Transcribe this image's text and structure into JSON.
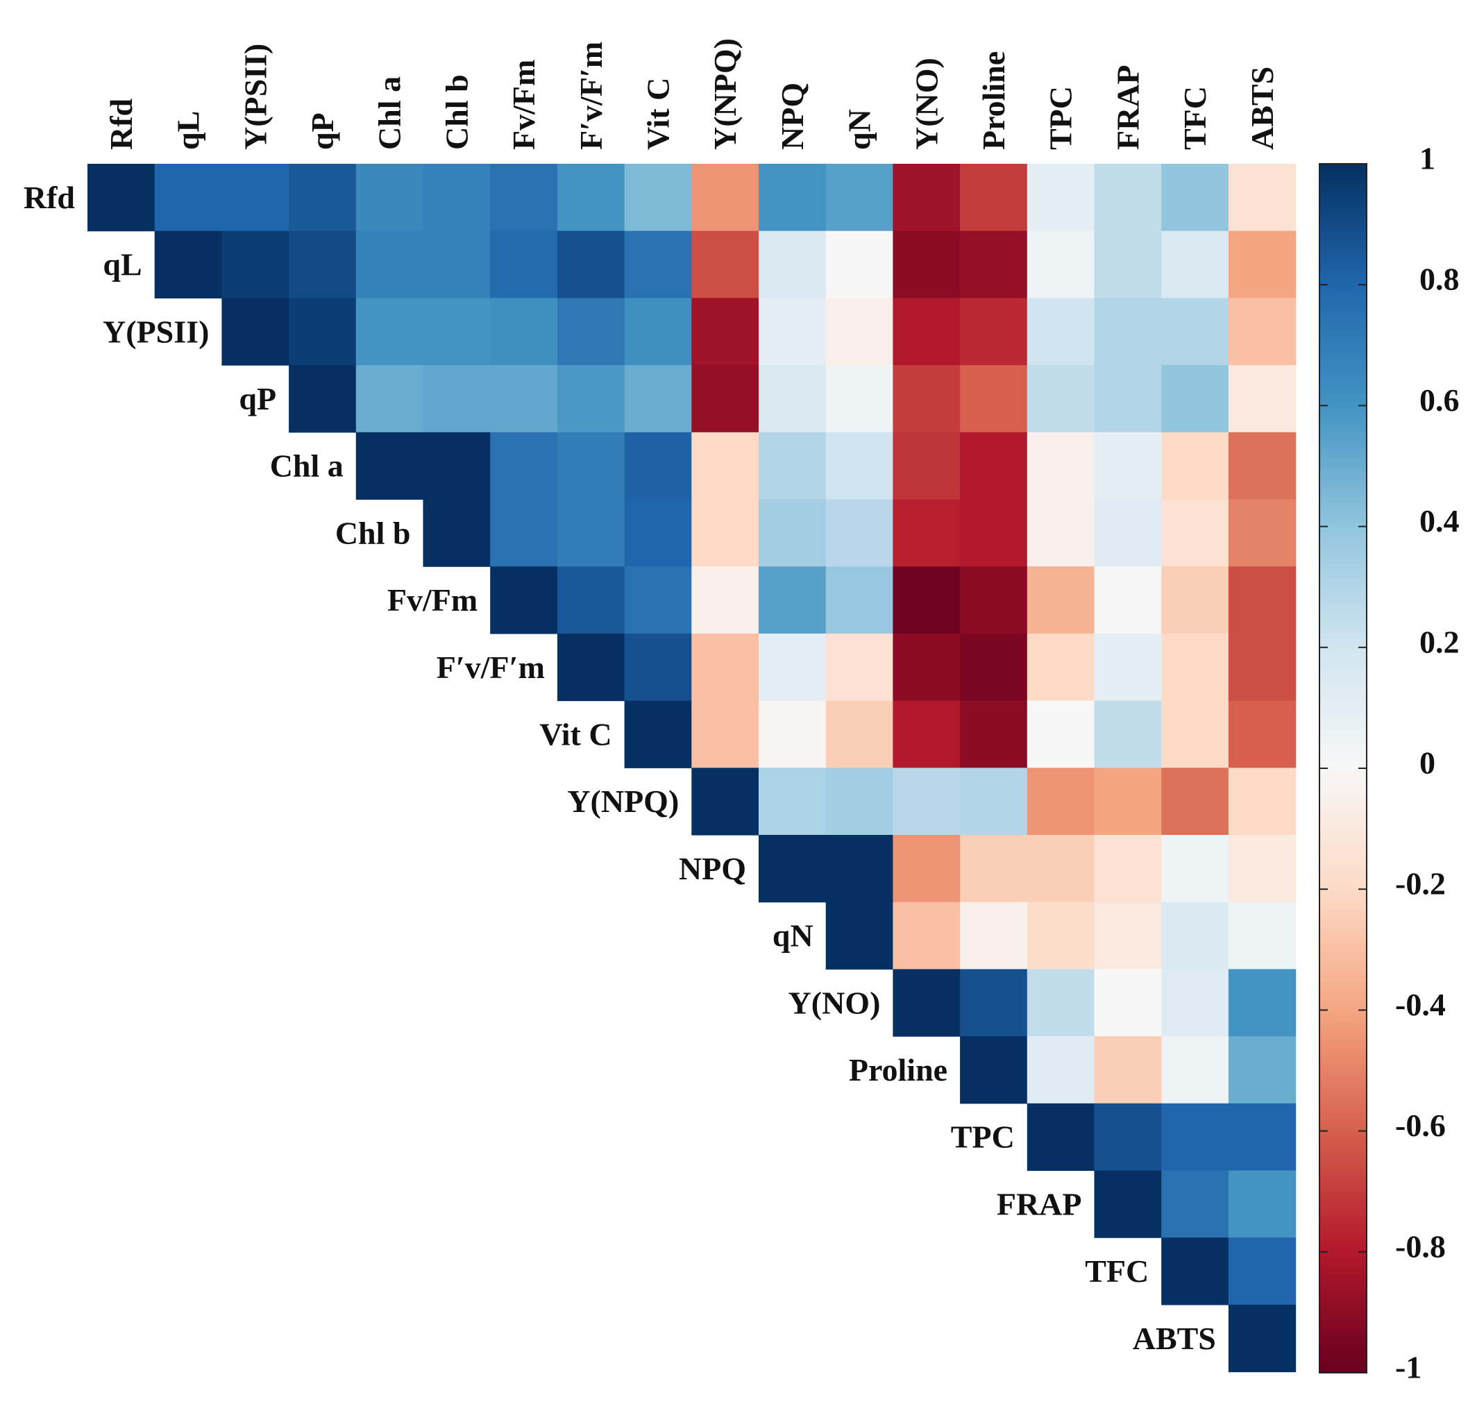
{
  "chart_data": {
    "type": "heatmap",
    "title": "",
    "variables": [
      "Rfd",
      "qL",
      "Y(PSII)",
      "qP",
      "Chl a",
      "Chl b",
      "Fv/Fm",
      "F′v/F′m",
      "Vit C",
      "Y(NPQ)",
      "NPQ",
      "qN",
      "Y(NO)",
      "Proline",
      "TPC",
      "FRAP",
      "TFC",
      "ABTS"
    ],
    "matrix": [
      [
        1.0,
        0.8,
        0.8,
        0.85,
        0.65,
        0.68,
        0.75,
        0.6,
        0.45,
        -0.45,
        0.6,
        0.55,
        -0.85,
        -0.7,
        0.1,
        0.25,
        0.4,
        -0.15
      ],
      [
        null,
        1.0,
        0.95,
        0.9,
        0.68,
        0.68,
        0.78,
        0.88,
        0.75,
        -0.65,
        0.15,
        0.0,
        -0.9,
        -0.88,
        0.05,
        0.25,
        0.15,
        -0.4
      ],
      [
        null,
        null,
        1.0,
        0.95,
        0.6,
        0.6,
        0.62,
        0.72,
        0.62,
        -0.85,
        0.1,
        -0.05,
        -0.8,
        -0.75,
        0.2,
        0.3,
        0.3,
        -0.3
      ],
      [
        null,
        null,
        null,
        1.0,
        0.5,
        0.52,
        0.52,
        0.58,
        0.5,
        -0.88,
        0.15,
        0.05,
        -0.7,
        -0.6,
        0.25,
        0.3,
        0.4,
        -0.1
      ],
      [
        null,
        null,
        null,
        null,
        1.0,
        1.0,
        0.75,
        0.7,
        0.82,
        -0.2,
        0.3,
        0.2,
        -0.72,
        -0.8,
        -0.05,
        0.1,
        -0.2,
        -0.55
      ],
      [
        null,
        null,
        null,
        null,
        null,
        1.0,
        0.75,
        0.7,
        0.8,
        -0.2,
        0.35,
        0.28,
        -0.78,
        -0.8,
        -0.05,
        0.12,
        -0.15,
        -0.5
      ],
      [
        null,
        null,
        null,
        null,
        null,
        null,
        1.0,
        0.85,
        0.75,
        -0.05,
        0.55,
        0.38,
        -0.98,
        -0.9,
        -0.35,
        0.0,
        -0.25,
        -0.65
      ],
      [
        null,
        null,
        null,
        null,
        null,
        null,
        null,
        1.0,
        0.88,
        -0.3,
        0.1,
        -0.15,
        -0.9,
        -0.95,
        -0.2,
        0.1,
        -0.2,
        -0.65
      ],
      [
        null,
        null,
        null,
        null,
        null,
        null,
        null,
        null,
        1.0,
        -0.3,
        -0.02,
        -0.25,
        -0.8,
        -0.9,
        0.0,
        0.25,
        -0.2,
        -0.6
      ],
      [
        null,
        null,
        null,
        null,
        null,
        null,
        null,
        null,
        null,
        1.0,
        0.32,
        0.35,
        0.28,
        0.3,
        -0.45,
        -0.4,
        -0.55,
        -0.2
      ],
      [
        null,
        null,
        null,
        null,
        null,
        null,
        null,
        null,
        null,
        null,
        1.0,
        1.0,
        -0.45,
        -0.25,
        -0.25,
        -0.15,
        0.05,
        -0.1
      ],
      [
        null,
        null,
        null,
        null,
        null,
        null,
        null,
        null,
        null,
        null,
        null,
        1.0,
        -0.3,
        -0.05,
        -0.18,
        -0.1,
        0.15,
        0.05
      ],
      [
        null,
        null,
        null,
        null,
        null,
        null,
        null,
        null,
        null,
        null,
        null,
        null,
        1.0,
        0.88,
        0.25,
        0.0,
        0.12,
        0.6
      ],
      [
        null,
        null,
        null,
        null,
        null,
        null,
        null,
        null,
        null,
        null,
        null,
        null,
        null,
        1.0,
        0.12,
        -0.25,
        0.05,
        0.5
      ],
      [
        null,
        null,
        null,
        null,
        null,
        null,
        null,
        null,
        null,
        null,
        null,
        null,
        null,
        null,
        1.0,
        0.88,
        0.8,
        0.8
      ],
      [
        null,
        null,
        null,
        null,
        null,
        null,
        null,
        null,
        null,
        null,
        null,
        null,
        null,
        null,
        null,
        1.0,
        0.75,
        0.6
      ],
      [
        null,
        null,
        null,
        null,
        null,
        null,
        null,
        null,
        null,
        null,
        null,
        null,
        null,
        null,
        null,
        null,
        1.0,
        0.8
      ],
      [
        null,
        null,
        null,
        null,
        null,
        null,
        null,
        null,
        null,
        null,
        null,
        null,
        null,
        null,
        null,
        null,
        null,
        1.0
      ]
    ],
    "colorbar": {
      "range": [
        -1,
        1
      ],
      "ticks": [
        1,
        0.8,
        0.6,
        0.4,
        0.2,
        0,
        -0.2,
        -0.4,
        -0.6,
        -0.8,
        -1
      ],
      "tick_labels": [
        "1",
        "0.8",
        "0.6",
        "0.4",
        "0.2",
        "0",
        "-0.2",
        "-0.4",
        "-0.6",
        "-0.8",
        "-1"
      ],
      "colormap": "RdBu",
      "stops": [
        {
          "v": -1.0,
          "color": "#67001f"
        },
        {
          "v": -0.8,
          "color": "#b2182b"
        },
        {
          "v": -0.6,
          "color": "#d6604d"
        },
        {
          "v": -0.4,
          "color": "#f4a582"
        },
        {
          "v": -0.2,
          "color": "#fddbc7"
        },
        {
          "v": 0.0,
          "color": "#f7f7f7"
        },
        {
          "v": 0.2,
          "color": "#d1e5f0"
        },
        {
          "v": 0.4,
          "color": "#92c5de"
        },
        {
          "v": 0.6,
          "color": "#4393c3"
        },
        {
          "v": 0.8,
          "color": "#2166ac"
        },
        {
          "v": 1.0,
          "color": "#053061"
        }
      ]
    }
  }
}
